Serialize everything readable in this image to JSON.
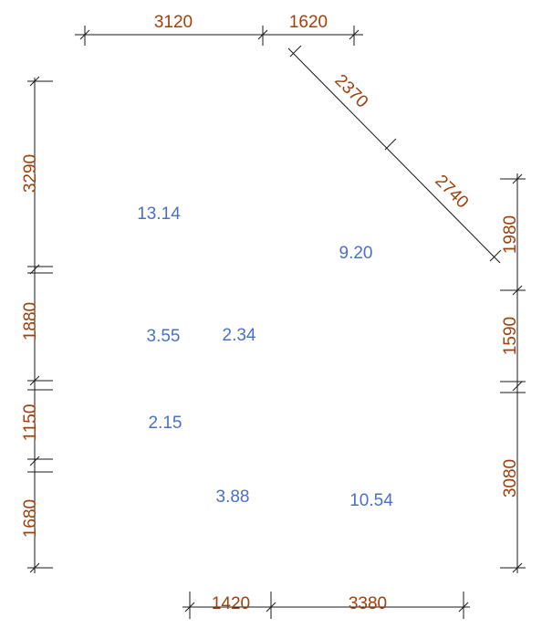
{
  "colors": {
    "dimension_text": "#a0400c",
    "area_text": "#4a70c8",
    "line": "#1a1a1a"
  },
  "dimensions": {
    "top": [
      "3120",
      "1620"
    ],
    "diagonal": [
      "2370",
      "2740"
    ],
    "left": [
      "3290",
      "1880",
      "1150",
      "1680"
    ],
    "right": [
      "1980",
      "1590",
      "3080"
    ],
    "bottom": [
      "1420",
      "3380"
    ]
  },
  "areas": [
    "13.14",
    "9.20",
    "3.55",
    "2.34",
    "2.15",
    "3.88",
    "10.54"
  ]
}
